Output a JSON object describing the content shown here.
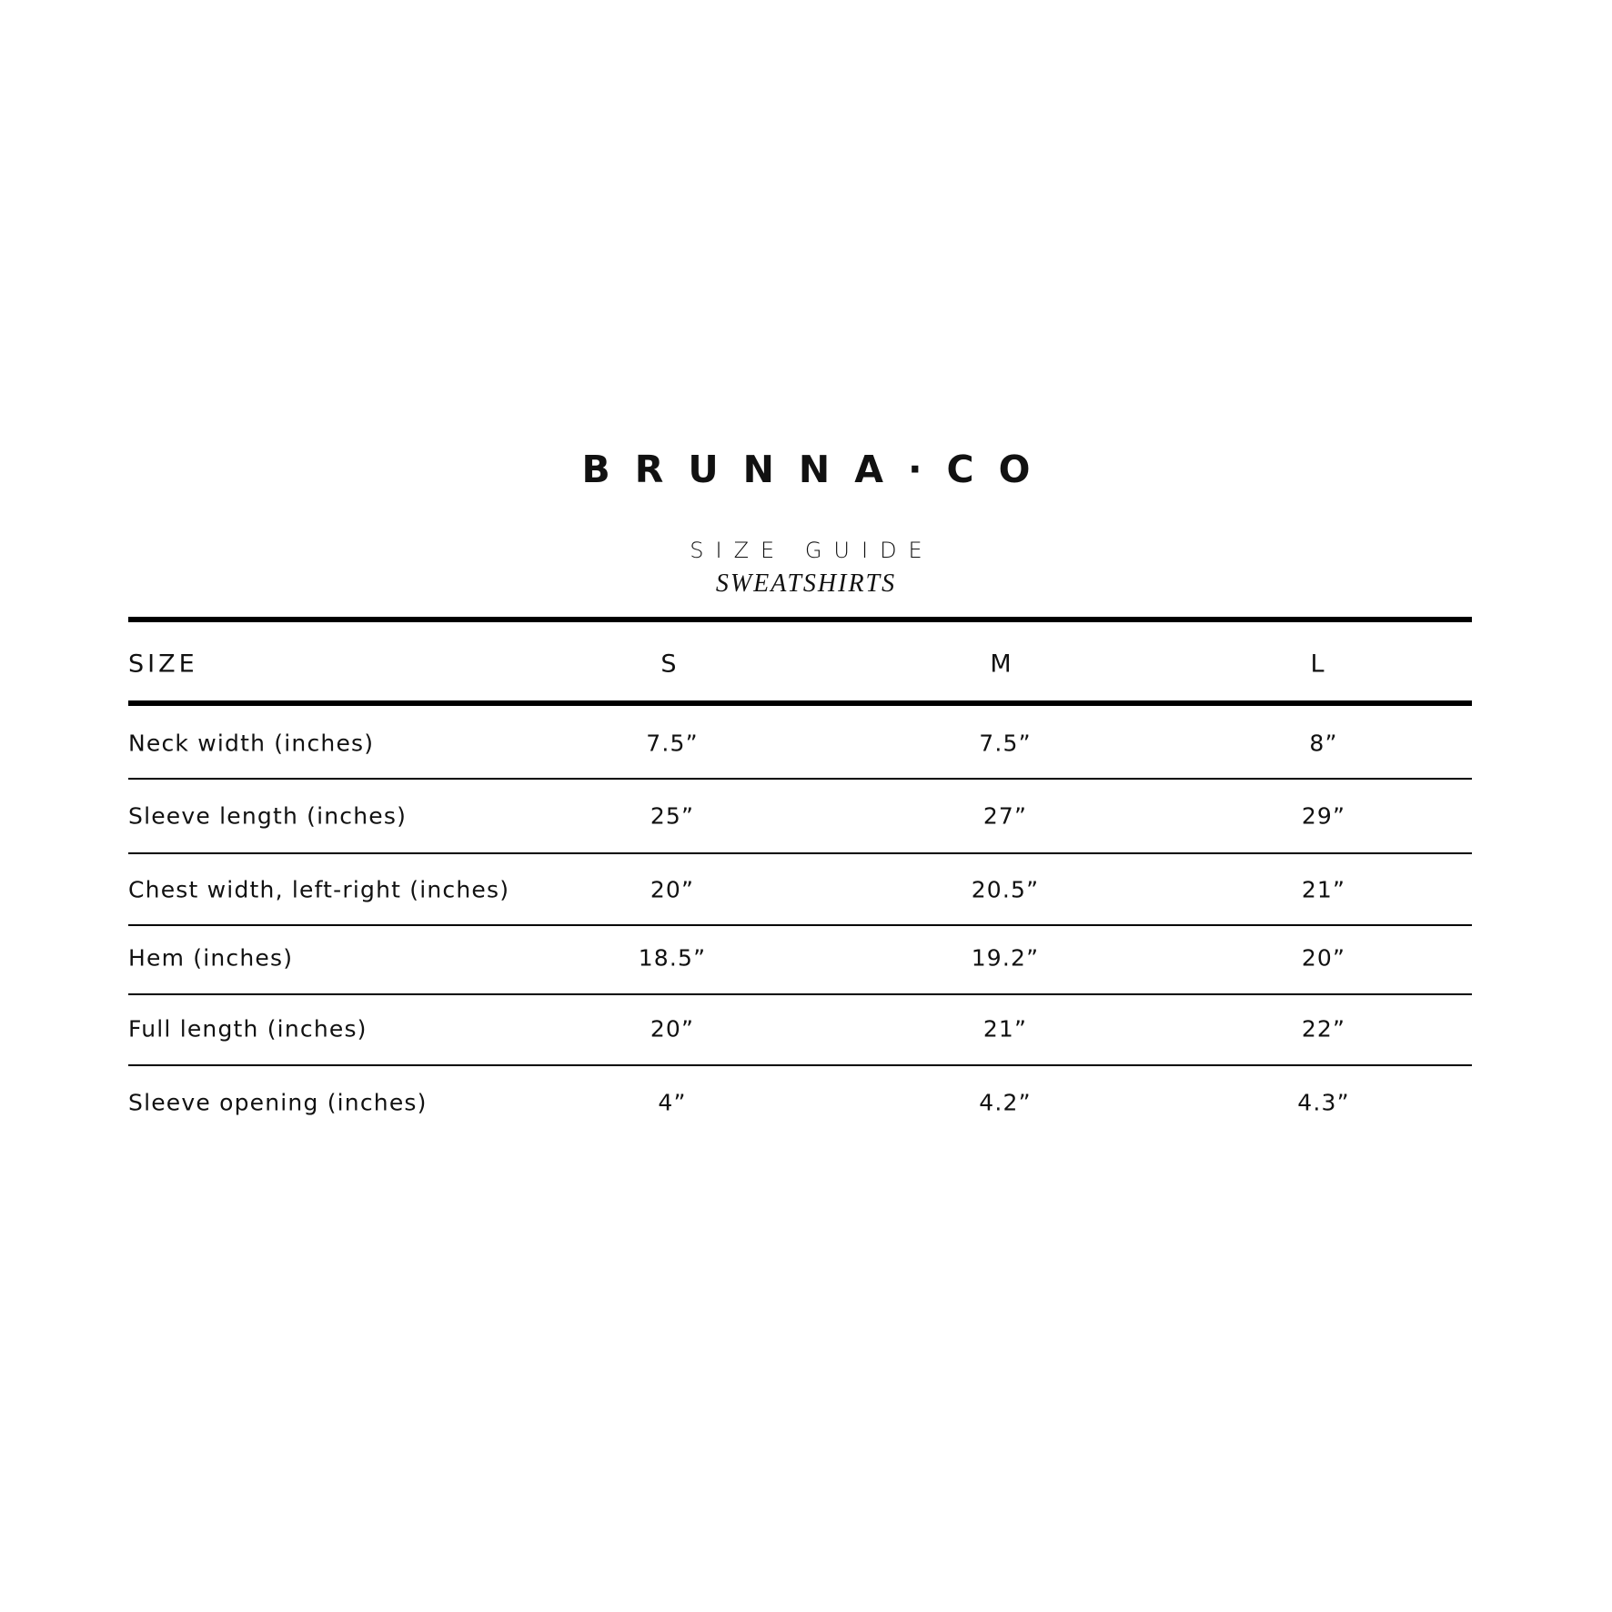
{
  "brand": "BRUNNA·CO",
  "title": "SIZE GUIDE",
  "subtitle": "SWEATSHIRTS",
  "table": {
    "headers": [
      "SIZE",
      "S",
      "M",
      "L"
    ],
    "rows": [
      {
        "label": "Neck width (inches)",
        "values": [
          "7.5”",
          "7.5”",
          "8”"
        ]
      },
      {
        "label": "Sleeve length (inches)",
        "values": [
          "25”",
          "27”",
          "29”"
        ]
      },
      {
        "label": "Chest width, left-right (inches)",
        "values": [
          "20”",
          "20.5”",
          "21”"
        ]
      },
      {
        "label": "Hem (inches)",
        "values": [
          "18.5”",
          "19.2”",
          "20”"
        ]
      },
      {
        "label": "Full length (inches)",
        "values": [
          "20”",
          "21”",
          "22”"
        ]
      },
      {
        "label": "Sleeve opening (inches)",
        "values": [
          "4”",
          "4.2”",
          "4.3”"
        ]
      }
    ]
  }
}
